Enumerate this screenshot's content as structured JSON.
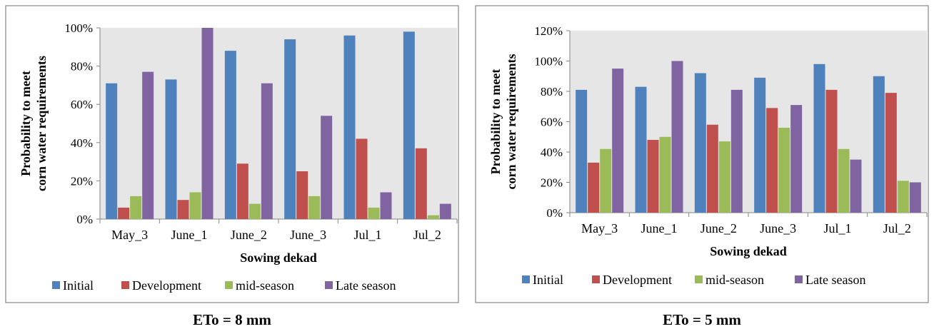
{
  "colors": {
    "Initial": "#4f81bd",
    "Development": "#c0504d",
    "mid-season": "#9bbb59",
    "Late season": "#8064a2",
    "plot_bg": "#e6e6e6"
  },
  "chart_data": [
    {
      "type": "bar",
      "caption": "ETo = 8 mm",
      "xlabel": "Sowing dekad",
      "ylabel_lines": [
        "Probability to meet",
        "corn water requirements"
      ],
      "ylim": [
        0,
        100
      ],
      "yticks": [
        "0%",
        "20%",
        "40%",
        "60%",
        "80%",
        "100%"
      ],
      "ytick_values": [
        0,
        20,
        40,
        60,
        80,
        100
      ],
      "categories": [
        "May_3",
        "June_1",
        "June_2",
        "June_3",
        "Jul_1",
        "Jul_2"
      ],
      "legend_position": "bottom",
      "grid": false,
      "series": [
        {
          "name": "Initial",
          "values": [
            71,
            73,
            88,
            94,
            96,
            98
          ]
        },
        {
          "name": "Development",
          "values": [
            6,
            10,
            29,
            25,
            42,
            37
          ]
        },
        {
          "name": "mid-season",
          "values": [
            12,
            14,
            8,
            12,
            6,
            2
          ]
        },
        {
          "name": "Late season",
          "values": [
            77,
            100,
            71,
            54,
            14,
            8
          ]
        }
      ]
    },
    {
      "type": "bar",
      "caption": "ETo = 5 mm",
      "xlabel": "Sowing dekad",
      "ylabel_lines": [
        "Probability to meet",
        "corn water requirements"
      ],
      "ylim": [
        0,
        120
      ],
      "yticks": [
        "0%",
        "20%",
        "40%",
        "60%",
        "80%",
        "100%",
        "120%"
      ],
      "ytick_values": [
        0,
        20,
        40,
        60,
        80,
        100,
        120
      ],
      "categories": [
        "May_3",
        "June_1",
        "June_2",
        "June_3",
        "Jul_1",
        "Jul_2"
      ],
      "legend_position": "bottom",
      "grid": false,
      "series": [
        {
          "name": "Initial",
          "values": [
            81,
            83,
            92,
            89,
            98,
            90
          ]
        },
        {
          "name": "Development",
          "values": [
            33,
            48,
            58,
            69,
            81,
            79
          ]
        },
        {
          "name": "mid-season",
          "values": [
            42,
            50,
            47,
            56,
            42,
            21
          ]
        },
        {
          "name": "Late season",
          "values": [
            95,
            100,
            81,
            71,
            35,
            20
          ]
        }
      ]
    }
  ]
}
